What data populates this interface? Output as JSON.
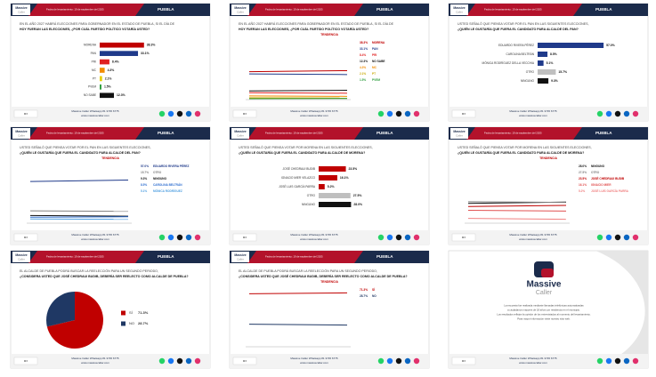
{
  "header": {
    "brand_top": "Massive",
    "brand_bottom": "Caller",
    "date": "Fecha de levantamiento: 19 de septiembre del 2025",
    "city": "PUEBLA"
  },
  "footer": {
    "contact": "Massive Caller Whatsapp 81 3745 6775",
    "web": "www.massivecaller.com",
    "sample": "MX"
  },
  "slides": [
    {
      "kind": "bars",
      "question": [
        "EN EL AÑO 2027 HABRÁ ELECCIONES PARA GOBERNADOR EN EL ESTADO DE PUEBLA, SI EL DÍA DE",
        "HOY FUERAN LAS ELECCIONES, ¿POR CUÁL PARTIDO POLÍTICO VOTARÍA USTED?"
      ],
      "items": [
        {
          "label": "MORENA",
          "value": 38.3,
          "value_label": "38.3%",
          "color": "#c00000"
        },
        {
          "label": "PAN",
          "value": 33.1,
          "value_label": "33.1%",
          "color": "#1f3a8a"
        },
        {
          "label": "PRI",
          "value": 8.4,
          "value_label": "8.4%",
          "color": "#e02020"
        },
        {
          "label": "MC",
          "value": 4.3,
          "value_label": "4.3%",
          "color": "#f28c00"
        },
        {
          "label": "PT",
          "value": 2.1,
          "value_label": "2.1%",
          "color": "#e8d000"
        },
        {
          "label": "PVEM",
          "value": 1.5,
          "value_label": "1.5%",
          "color": "#2e9e3e"
        },
        {
          "label": "NO SABE",
          "value": 12.3,
          "value_label": "12.3%",
          "color": "#111111"
        }
      ]
    },
    {
      "kind": "lines",
      "question": [
        "EN EL AÑO 2027 HABRÁ ELECCIONES PARA GOBERNADOR EN EL ESTADO DE PUEBLA, SI EL DÍA DE",
        "HOY FUERAN LAS ELECCIONES, ¿POR CUÁL PARTIDO POLÍTICO VOTARÍA USTED?"
      ],
      "subtitle": "TENDENCIA",
      "series": [
        {
          "name": "MORENA",
          "value_label": "38.3%",
          "color": "#c00000",
          "values": [
            36.9,
            38.3
          ]
        },
        {
          "name": "PAN",
          "value_label": "33.1%",
          "color": "#1f3a8a",
          "values": [
            34.0,
            33.1
          ]
        },
        {
          "name": "PRI",
          "value_label": "8.4%",
          "color": "#e02020",
          "values": [
            9.1,
            8.4
          ]
        },
        {
          "name": "NO SABE",
          "value_label": "12.3%",
          "color": "#111111",
          "values": [
            11.5,
            12.3
          ]
        },
        {
          "name": "MC",
          "value_label": "4.3%",
          "color": "#f28c00",
          "values": [
            4.8,
            4.3
          ]
        },
        {
          "name": "PT",
          "value_label": "2.1%",
          "color": "#c9a800",
          "values": [
            2.4,
            2.1
          ]
        },
        {
          "name": "PVEM",
          "value_label": "1.5%",
          "color": "#2e9e3e",
          "values": [
            1.2,
            1.5
          ]
        }
      ]
    },
    {
      "kind": "bars",
      "question": [
        "USTED SEÑALÓ QUE PIENSA VOTAR POR EL PAN EN LAS SIGUIENTES ELECCIONES,",
        "¿QUIÉN LE GUSTARÍA QUE FUERA EL CANDIDATO PARA ALCALDE DEL PAN?"
      ],
      "items": [
        {
          "label": "EDUARDO RIVERA PÉREZ",
          "value": 57.0,
          "value_label": "57.0%",
          "color": "#1f3a8a"
        },
        {
          "label": "CAROLINA BELTRÁN",
          "value": 8.5,
          "value_label": "8.5%",
          "color": "#1f3a8a"
        },
        {
          "label": "MÓNICA RODRÍGUEZ DELLA VECCHIA",
          "value": 5.1,
          "value_label": "5.1%",
          "color": "#1f3a8a"
        },
        {
          "label": "OTRO",
          "value": 15.7,
          "value_label": "15.7%",
          "color": "#bfbfbf"
        },
        {
          "label": "NINGUNO",
          "value": 9.3,
          "value_label": "9.3%",
          "color": "#111111"
        }
      ]
    },
    {
      "kind": "lines",
      "question": [
        "USTED SEÑALÓ QUE PIENSA VOTAR POR EL PAN EN LAS SIGUIENTES ELECCIONES,",
        "¿QUIÉN LE GUSTARÍA QUE FUERA EL CANDIDATO PARA ALCALDE DEL PAN?"
      ],
      "subtitle": "TENDENCIA",
      "series": [
        {
          "name": "EDUARDO RIVERA PÉREZ",
          "value_label": "57.0%",
          "color": "#1f3a8a",
          "values": [
            55.2,
            57.0
          ]
        },
        {
          "name": "OTRO",
          "value_label": "15.7%",
          "color": "#7f7f7f",
          "values": [
            16.3,
            15.7
          ]
        },
        {
          "name": "NINGUNO",
          "value_label": "9.3%",
          "color": "#111111",
          "values": [
            10.1,
            9.3
          ]
        },
        {
          "name": "CAROLINA BELTRÁN",
          "value_label": "8.5%",
          "color": "#2f6fd0",
          "values": [
            8.0,
            8.5
          ]
        },
        {
          "name": "MÓNICA RODRÍGUEZ",
          "value_label": "5.1%",
          "color": "#4f9fe0",
          "values": [
            5.6,
            5.1
          ]
        }
      ]
    },
    {
      "kind": "bars",
      "question": [
        "USTED SEÑALÓ QUE PIENSA VOTAR POR MORENA EN LAS SIGUIENTES ELECCIONES,",
        "¿QUIÉN LE GUSTARÍA QUE FUERA EL CANDIDATO PARA ALCALDE DE MORENA?"
      ],
      "items": [
        {
          "label": "JOSÉ CHEDRAUI BUDIB",
          "value": 23.5,
          "value_label": "23.5%",
          "color": "#c00000"
        },
        {
          "label": "IGNACIO MIER VELAZCO",
          "value": 16.1,
          "value_label": "16.1%",
          "color": "#c00000"
        },
        {
          "label": "JOSÉ LUIS GARCÍA PARRA",
          "value": 5.2,
          "value_label": "5.2%",
          "color": "#c00000"
        },
        {
          "label": "OTRO",
          "value": 27.5,
          "value_label": "27.5%",
          "color": "#bfbfbf"
        },
        {
          "label": "NINGUNO",
          "value": 28.0,
          "value_label": "28.0%",
          "color": "#111111"
        }
      ]
    },
    {
      "kind": "lines",
      "question": [
        "USTED SEÑALÓ QUE PIENSA VOTAR POR MORENA EN LAS SIGUIENTES ELECCIONES,",
        "¿QUIÉN LE GUSTARÍA QUE FUERA EL CANDIDATO PARA ALCALDE DE MORENA?"
      ],
      "subtitle": "TENDENCIA",
      "series": [
        {
          "name": "NINGUNO",
          "value_label": "28.0%",
          "color": "#111111",
          "values": [
            26.2,
            28.0
          ]
        },
        {
          "name": "OTRO",
          "value_label": "27.5%",
          "color": "#7f7f7f",
          "values": [
            28.4,
            27.5
          ]
        },
        {
          "name": "JOSÉ CHEDRAUI BUDIB",
          "value_label": "23.5%",
          "color": "#c00000",
          "values": [
            22.1,
            23.5
          ]
        },
        {
          "name": "IGNACIO MIER",
          "value_label": "16.1%",
          "color": "#e05050",
          "values": [
            17.0,
            16.1
          ]
        },
        {
          "name": "JOSÉ LUIS GARCÍA PARRA",
          "value_label": "5.2%",
          "color": "#f08080",
          "values": [
            6.3,
            5.2
          ]
        }
      ]
    },
    {
      "kind": "pie",
      "question": [
        "EL ALCALDE DE PUEBLA PODRÁ BUSCAR LA REELECCIÓN PARA UN SEGUNDO PERIODO,",
        "¿CONSIDERA USTED QUE JOSÉ CHEDRAUI BUDIB, DEBERÍA SER REELECTO COMO ALCALDE DE PUEBLA?"
      ],
      "items": [
        {
          "label": "SÍ",
          "value": 71.3,
          "value_label": "71.3%",
          "color": "#c00000"
        },
        {
          "label": "NO",
          "value": 28.7,
          "value_label": "28.7%",
          "color": "#1f3864"
        }
      ]
    },
    {
      "kind": "lines",
      "question": [
        "EL ALCALDE DE PUEBLA PODRÁ BUSCAR LA REELECCIÓN PARA UN SEGUNDO PERIODO,",
        "¿CONSIDERA USTED QUE JOSÉ CHEDRAUI BUDIB, DEBERÍA SER REELECTO COMO ALCALDE DE PUEBLA?"
      ],
      "subtitle": "TENDENCIA",
      "series": [
        {
          "name": "SÍ",
          "value_label": "71.3%",
          "color": "#c00000",
          "values": [
            70.1,
            71.3
          ]
        },
        {
          "name": "NO",
          "value_label": "28.7%",
          "color": "#1f3864",
          "values": [
            29.9,
            28.7
          ]
        }
      ]
    },
    {
      "kind": "closing",
      "note": [
        "La encuesta fue realizada mediante llamadas telefónicas automatizadas",
        "a ciudadanos mayores de 18 años con residencia en el municipio.",
        "Los resultados reflejan la opinión de los entrevistados al momento del levantamiento.",
        "Para mayor información visite nuestro sitio web."
      ]
    }
  ]
}
